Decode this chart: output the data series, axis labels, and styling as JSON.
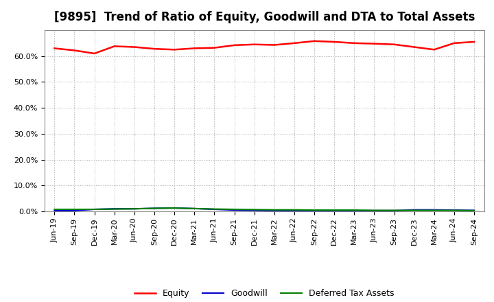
{
  "title": "[9895]  Trend of Ratio of Equity, Goodwill and DTA to Total Assets",
  "x_labels": [
    "Jun-19",
    "Sep-19",
    "Dec-19",
    "Mar-20",
    "Jun-20",
    "Sep-20",
    "Dec-20",
    "Mar-21",
    "Jun-21",
    "Sep-21",
    "Dec-21",
    "Mar-22",
    "Jun-22",
    "Sep-22",
    "Dec-22",
    "Mar-23",
    "Jun-23",
    "Sep-23",
    "Dec-23",
    "Mar-24",
    "Jun-24",
    "Sep-24"
  ],
  "equity": [
    63.0,
    62.2,
    61.0,
    63.8,
    63.5,
    62.8,
    62.5,
    63.0,
    63.2,
    64.2,
    64.5,
    64.3,
    65.0,
    65.8,
    65.5,
    65.0,
    64.8,
    64.5,
    63.5,
    62.5,
    65.0,
    65.5
  ],
  "goodwill": [
    0.3,
    0.3,
    0.8,
    1.0,
    1.0,
    1.2,
    1.3,
    1.1,
    0.8,
    0.5,
    0.4,
    0.3,
    0.3,
    0.3,
    0.3,
    0.3,
    0.3,
    0.3,
    0.6,
    0.6,
    0.5,
    0.4
  ],
  "dta": [
    0.8,
    0.8,
    0.8,
    0.9,
    1.0,
    1.2,
    1.3,
    1.1,
    0.9,
    0.8,
    0.7,
    0.6,
    0.6,
    0.5,
    0.5,
    0.5,
    0.4,
    0.4,
    0.4,
    0.4,
    0.4,
    0.3
  ],
  "equity_color": "#ff0000",
  "goodwill_color": "#0000cc",
  "dta_color": "#008000",
  "ylim": [
    0,
    70
  ],
  "yticks": [
    0,
    10,
    20,
    30,
    40,
    50,
    60
  ],
  "legend_labels": [
    "Equity",
    "Goodwill",
    "Deferred Tax Assets"
  ],
  "background_color": "#ffffff",
  "plot_bg_color": "#ffffff",
  "grid_color": "#aaaaaa",
  "title_fontsize": 12,
  "tick_fontsize": 8
}
